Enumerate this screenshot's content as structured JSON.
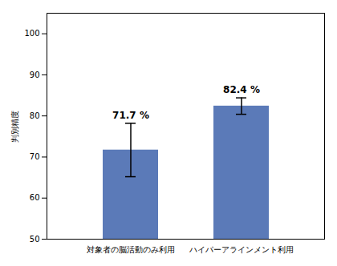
{
  "chart_data": {
    "type": "bar",
    "categories": [
      "対象者の脳活動のみ利用",
      "ハイパーアラインメント利用"
    ],
    "values": [
      71.7,
      82.4
    ],
    "errors": [
      6.5,
      2.0
    ],
    "value_labels": [
      "71.7 %",
      "82.4 %"
    ],
    "data_labels": true,
    "color": "#5b7ab8",
    "ylabel": "判別精度",
    "ylim": [
      50,
      105
    ],
    "yticks": [
      50,
      60,
      70,
      80,
      90,
      100
    ],
    "grid": false
  }
}
